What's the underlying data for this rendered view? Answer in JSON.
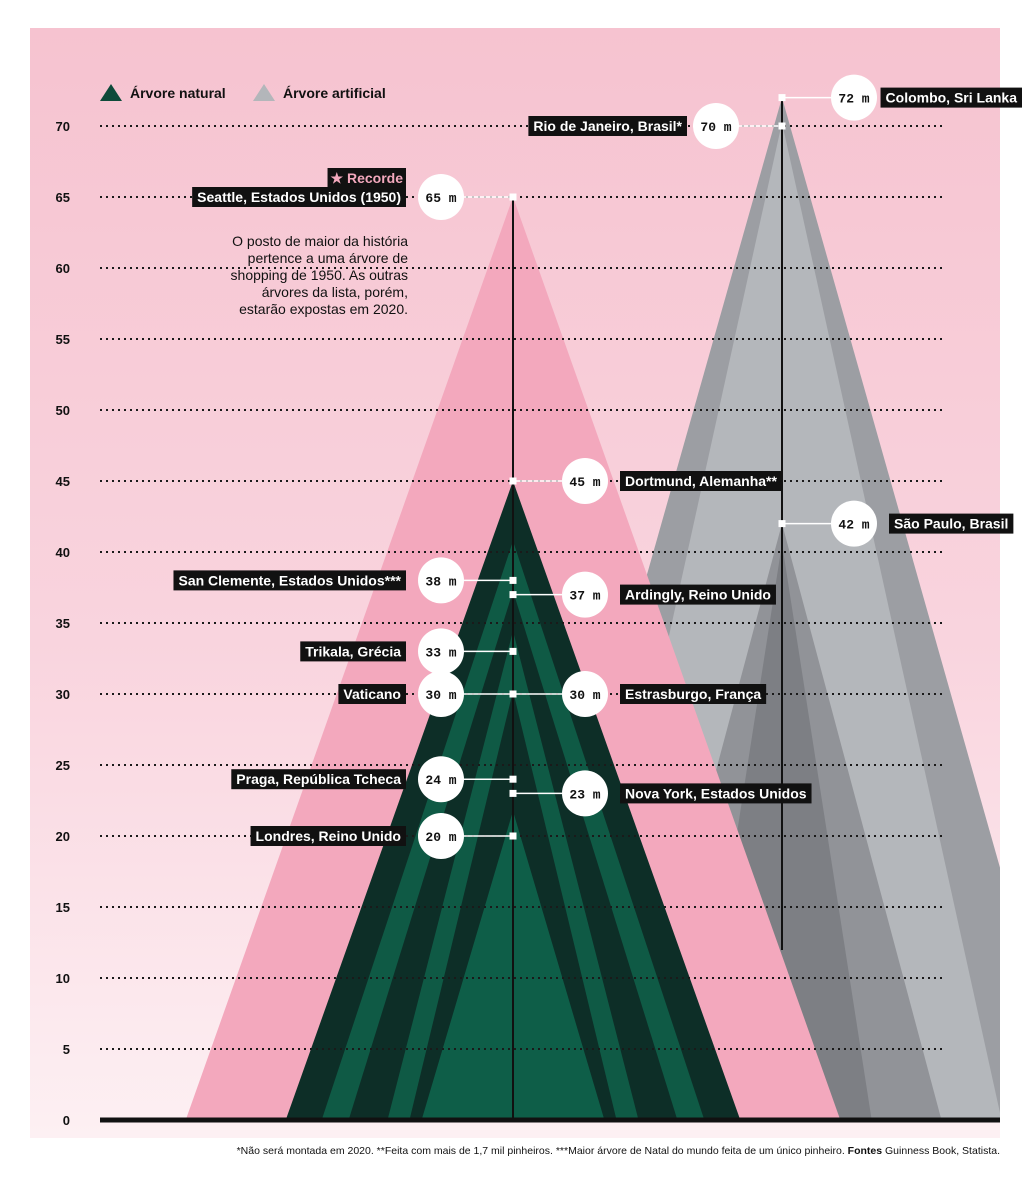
{
  "chart_data": {
    "type": "bar",
    "ylim": [
      0,
      75
    ],
    "yticks": [
      0,
      5,
      10,
      15,
      20,
      25,
      30,
      35,
      40,
      45,
      50,
      55,
      60,
      65,
      70
    ],
    "grid": true,
    "legend": {
      "placement": "top-left",
      "items": [
        {
          "label": "Árvore natural",
          "color": "#0e4a3a"
        },
        {
          "label": "Árvore artificial",
          "color": "#b3b6ba"
        }
      ]
    },
    "unit": "m",
    "record_label": "★ Recorde",
    "annotation": "O posto de maior da história pertence a uma árvore de shopping de 1950. As outras árvores da lista, porém, estarão expostas em 2020.",
    "series": [
      {
        "name": "Árvore natural",
        "color": "#0e4a3a",
        "points": [
          {
            "label": "Seattle, Estados Unidos (1950)",
            "value": 65,
            "side": "left",
            "record": true
          },
          {
            "label": "Dortmund, Alemanha**",
            "value": 45,
            "side": "right"
          },
          {
            "label": "San Clemente, Estados Unidos***",
            "value": 38,
            "side": "left"
          },
          {
            "label": "Ardingly, Reino Unido",
            "value": 37,
            "side": "right"
          },
          {
            "label": "Trikala, Grécia",
            "value": 33,
            "side": "left"
          },
          {
            "label": "Vaticano",
            "value": 30,
            "side": "left"
          },
          {
            "label": "Estrasburgo, França",
            "value": 30,
            "side": "right"
          },
          {
            "label": "Praga, República Tcheca",
            "value": 24,
            "side": "left"
          },
          {
            "label": "Nova York, Estados Unidos",
            "value": 23,
            "side": "right"
          },
          {
            "label": "Londres, Reino Unido",
            "value": 20,
            "side": "left"
          }
        ]
      },
      {
        "name": "Árvore artificial",
        "color": "#b3b6ba",
        "points": [
          {
            "label": "Colombo, Sri Lanka",
            "value": 72,
            "side": "right"
          },
          {
            "label": "Rio de Janeiro, Brasil*",
            "value": 70,
            "side": "left"
          },
          {
            "label": "São Paulo, Brasil",
            "value": 42,
            "side": "right"
          }
        ]
      }
    ]
  },
  "footnote": {
    "text": "*Não será montada em 2020. **Feita com mais de 1,7 mil pinheiros. ***Maior árvore de Natal do mundo feita de um único pinheiro. ",
    "sources_label": "Fontes",
    "sources": " Guinness Book, Statista."
  }
}
